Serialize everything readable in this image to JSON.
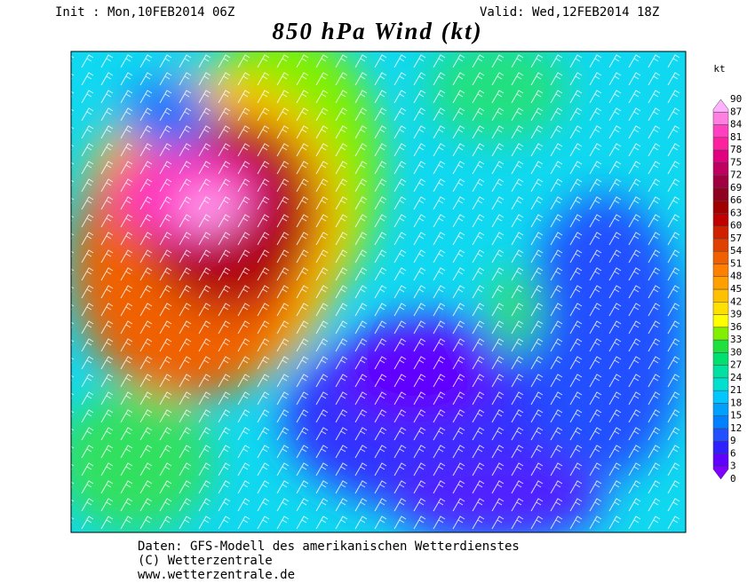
{
  "header": {
    "init": "Init : Mon,10FEB2014 06Z",
    "valid": "Valid: Wed,12FEB2014 18Z",
    "title": "850 hPa Wind (kt)"
  },
  "legend": {
    "unit": "kt",
    "levels": [
      0,
      3,
      6,
      9,
      12,
      15,
      18,
      21,
      24,
      27,
      30,
      33,
      36,
      39,
      42,
      45,
      48,
      51,
      54,
      57,
      60,
      63,
      66,
      69,
      72,
      75,
      78,
      81,
      84,
      87,
      90
    ],
    "colors": [
      "#8000ff",
      "#6000ff",
      "#3020ff",
      "#2050ff",
      "#0080ff",
      "#00a0ff",
      "#00c8ff",
      "#00e0d0",
      "#00e0a0",
      "#00e070",
      "#20e040",
      "#80f000",
      "#ffff00",
      "#ffe000",
      "#ffc000",
      "#ffa000",
      "#ff8000",
      "#f06000",
      "#e04000",
      "#d02000",
      "#c00000",
      "#a00000",
      "#900020",
      "#a00040",
      "#c00060",
      "#e00080",
      "#ff20a0",
      "#ff40c0",
      "#ff80e0",
      "#ffb0ff"
    ]
  },
  "footer": {
    "line1": "Daten: GFS-Modell des amerikanischen Wetterdienstes",
    "line2": "(C) Wetterzentrale",
    "line3": "www.wetterzentrale.de"
  }
}
